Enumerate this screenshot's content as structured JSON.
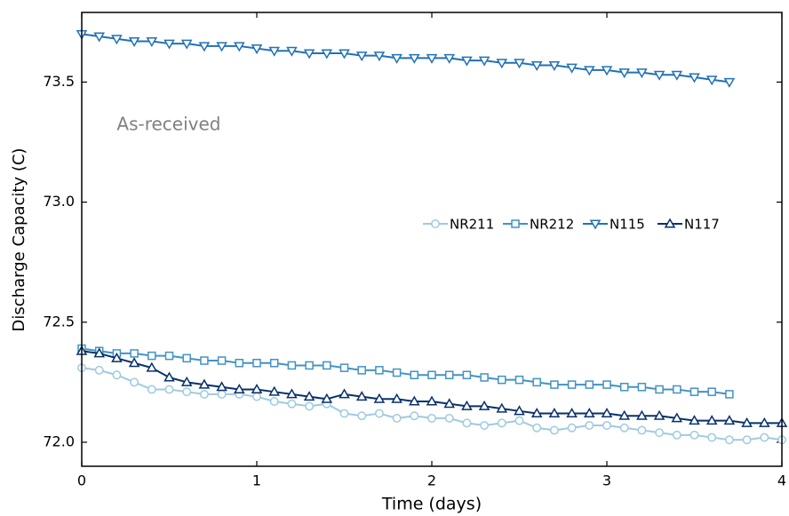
{
  "chart_data": {
    "type": "line",
    "xlabel": "Time (days)",
    "ylabel": "Discharge Capacity (C)",
    "annotation": {
      "text": "As-received",
      "x": 0.2,
      "y": 73.32
    },
    "x": [
      0,
      0.1,
      0.2,
      0.3,
      0.4,
      0.5,
      0.6,
      0.7,
      0.8,
      0.9,
      1,
      1.1,
      1.2,
      1.3,
      1.4,
      1.5,
      1.6,
      1.7,
      1.8,
      1.9,
      2,
      2.1,
      2.2,
      2.3,
      2.4,
      2.5,
      2.6,
      2.7,
      2.8,
      2.9,
      3,
      3.1,
      3.2,
      3.3,
      3.4,
      3.5,
      3.6,
      3.7,
      3.8,
      3.9,
      4
    ],
    "series": [
      {
        "name": "NR211",
        "color": "#9ecae1",
        "marker": "circle",
        "values": [
          72.31,
          72.3,
          72.28,
          72.25,
          72.22,
          72.22,
          72.21,
          72.2,
          72.2,
          72.2,
          72.19,
          72.17,
          72.16,
          72.15,
          72.16,
          72.12,
          72.11,
          72.12,
          72.1,
          72.11,
          72.1,
          72.1,
          72.08,
          72.07,
          72.08,
          72.09,
          72.06,
          72.05,
          72.06,
          72.07,
          72.07,
          72.06,
          72.05,
          72.04,
          72.03,
          72.03,
          72.02,
          72.01,
          72.01,
          72.02,
          72.01
        ]
      },
      {
        "name": "NR212",
        "color": "#4292c6",
        "marker": "square",
        "values": [
          72.39,
          72.38,
          72.37,
          72.37,
          72.36,
          72.36,
          72.35,
          72.34,
          72.34,
          72.33,
          72.33,
          72.33,
          72.32,
          72.32,
          72.32,
          72.31,
          72.3,
          72.3,
          72.29,
          72.28,
          72.28,
          72.28,
          72.28,
          72.27,
          72.26,
          72.26,
          72.25,
          72.24,
          72.24,
          72.24,
          72.24,
          72.23,
          72.23,
          72.22,
          72.22,
          72.21,
          72.21,
          72.2,
          null,
          null,
          null
        ]
      },
      {
        "name": "N115",
        "color": "#2171b5",
        "marker": "triangle-down",
        "values": [
          73.7,
          73.69,
          73.68,
          73.67,
          73.67,
          73.66,
          73.66,
          73.65,
          73.65,
          73.65,
          73.64,
          73.63,
          73.63,
          73.62,
          73.62,
          73.62,
          73.61,
          73.61,
          73.6,
          73.6,
          73.6,
          73.6,
          73.59,
          73.59,
          73.58,
          73.58,
          73.57,
          73.57,
          73.56,
          73.55,
          73.55,
          73.54,
          73.54,
          73.53,
          73.53,
          73.52,
          73.51,
          73.5,
          null,
          null,
          null
        ]
      },
      {
        "name": "N117",
        "color": "#08306b",
        "marker": "triangle-up",
        "values": [
          72.38,
          72.37,
          72.35,
          72.33,
          72.31,
          72.27,
          72.25,
          72.24,
          72.23,
          72.22,
          72.22,
          72.21,
          72.2,
          72.19,
          72.18,
          72.2,
          72.19,
          72.18,
          72.18,
          72.17,
          72.17,
          72.16,
          72.15,
          72.15,
          72.14,
          72.13,
          72.12,
          72.12,
          72.12,
          72.12,
          72.12,
          72.11,
          72.11,
          72.11,
          72.1,
          72.09,
          72.09,
          72.09,
          72.08,
          72.08,
          72.08
        ]
      }
    ],
    "xlim": [
      0,
      4
    ],
    "xticks": [
      0,
      1,
      2,
      3,
      4
    ],
    "ylim": [
      71.9,
      73.79
    ],
    "yticks": [
      {
        "value": 72,
        "label": "72.0"
      },
      72.5,
      {
        "value": 73,
        "label": "73.0"
      },
      73.5
    ],
    "grid": false,
    "legend": "center right"
  }
}
